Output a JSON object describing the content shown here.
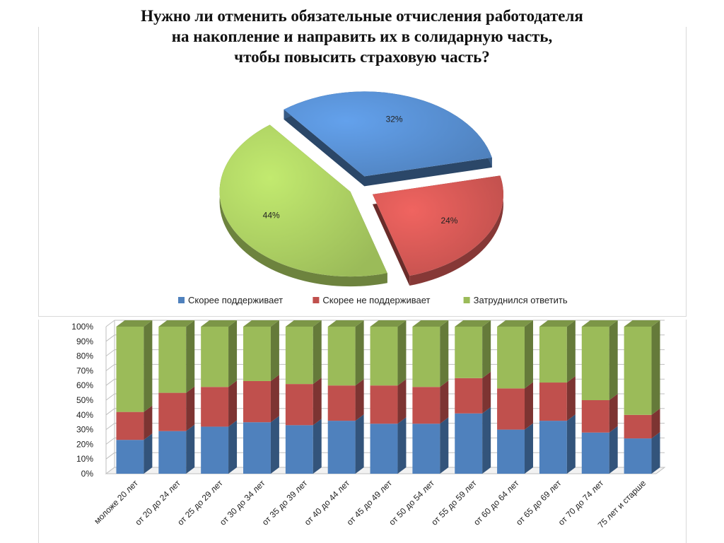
{
  "title": {
    "line1": "Нужно ли отменить обязательные отчисления работодателя",
    "line2": "на накопление и направить их в солидарную часть,",
    "line3": "чтобы повысить страховую часть?"
  },
  "colors": {
    "blue": "#4f81bd",
    "red": "#c0504d",
    "green": "#9bbb59"
  },
  "chart_data": [
    {
      "type": "pie",
      "series": [
        {
          "name": "Скорее поддерживает",
          "value": 32,
          "label": "32%"
        },
        {
          "name": "Скорее не поддерживает",
          "value": 24,
          "label": "24%"
        },
        {
          "name": "Затруднился ответить",
          "value": 44,
          "label": "44%"
        }
      ],
      "legend": [
        "Скорее поддерживает",
        "Скорее не поддерживает",
        "Затруднился ответить"
      ],
      "legend_position": "bottom"
    },
    {
      "type": "bar",
      "stacked": true,
      "percent": true,
      "categories": [
        "моложе 20 лет",
        "от 20 до 24 лет",
        "от 25 до 29 лет",
        "от 30 до 34 лет",
        "от 35 до 39 лет",
        "от 40 до 44 лет",
        "от 45 до 49 лет",
        "от 50 до 54 лет",
        "от 55 до 59 лет",
        "от 60 до 64 лет",
        "от 65 до 69 лет",
        "от 70 до 74 лет",
        "75 лет и старше"
      ],
      "series": [
        {
          "name": "Скорее поддерживает",
          "values": [
            23,
            29,
            32,
            35,
            33,
            36,
            34,
            34,
            41,
            30,
            36,
            28,
            24
          ]
        },
        {
          "name": "Скорее не поддерживает",
          "values": [
            19,
            26,
            27,
            28,
            28,
            24,
            26,
            25,
            24,
            28,
            26,
            22,
            16
          ]
        },
        {
          "name": "Затруднился ответить",
          "values": [
            58,
            45,
            41,
            37,
            39,
            40,
            40,
            41,
            35,
            42,
            38,
            50,
            60
          ]
        }
      ],
      "yticks": [
        "0%",
        "10%",
        "20%",
        "30%",
        "40%",
        "50%",
        "60%",
        "70%",
        "80%",
        "90%",
        "100%"
      ],
      "ylim": [
        0,
        100
      ],
      "grid": true
    }
  ]
}
